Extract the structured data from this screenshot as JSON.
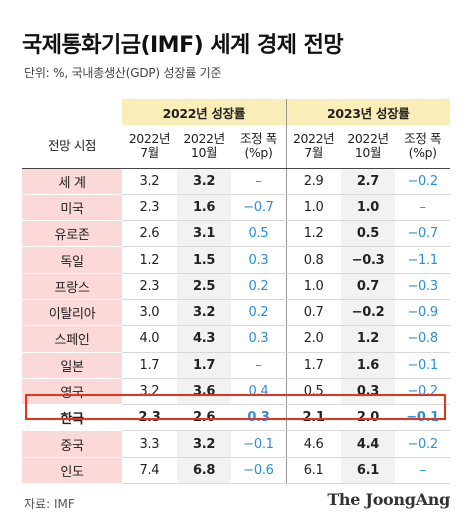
{
  "title": "국제통화기금(IMF) 세계 경제 전망",
  "unit": "단위: %, 국내총생산(GDP) 성장률 기준",
  "group_headers": [
    "2022년 성장률",
    "2023년 성장률"
  ],
  "row_header": "전망 시점",
  "sub_headers": [
    [
      "2022년",
      "7월"
    ],
    [
      "2022년",
      "10월"
    ],
    [
      "조정 폭",
      "(%p)"
    ],
    [
      "2022년",
      "7월"
    ],
    [
      "2022년",
      "10월"
    ],
    [
      "조정 폭",
      "(%p)"
    ]
  ],
  "rows": [
    {
      "country": "세 계",
      "values": [
        "3.2",
        "3.2",
        "–",
        "2.9",
        "2.7",
        "−0.2"
      ]
    },
    {
      "country": "미국",
      "values": [
        "2.3",
        "1.6",
        "−0.7",
        "1.0",
        "1.0",
        "–"
      ]
    },
    {
      "country": "유로존",
      "values": [
        "2.6",
        "3.1",
        "0.5",
        "1.2",
        "0.5",
        "−0.7"
      ]
    },
    {
      "country": "독일",
      "values": [
        "1.2",
        "1.5",
        "0.3",
        "0.8",
        "−0.3",
        "−1.1"
      ]
    },
    {
      "country": "프랑스",
      "values": [
        "2.3",
        "2.5",
        "0.2",
        "1.0",
        "0.7",
        "−0.3"
      ]
    },
    {
      "country": "이탈리아",
      "values": [
        "3.0",
        "3.2",
        "0.2",
        "0.7",
        "−0.2",
        "−0.9"
      ]
    },
    {
      "country": "스페인",
      "values": [
        "4.0",
        "4.3",
        "0.3",
        "2.0",
        "1.2",
        "−0.8"
      ]
    },
    {
      "country": "일본",
      "values": [
        "1.7",
        "1.7",
        "–",
        "1.7",
        "1.6",
        "−0.1"
      ]
    },
    {
      "country": "영국",
      "values": [
        "3.2",
        "3.6",
        "0.4",
        "0.5",
        "0.3",
        "−0.2"
      ]
    },
    {
      "country": "한국",
      "values": [
        "2.3",
        "2.6",
        "0.3",
        "2.1",
        "2.0",
        "−0.1"
      ],
      "highlight": true
    },
    {
      "country": "중국",
      "values": [
        "3.3",
        "3.2",
        "−0.1",
        "4.6",
        "4.4",
        "−0.2"
      ]
    },
    {
      "country": "인도",
      "values": [
        "7.4",
        "6.8",
        "−0.6",
        "6.1",
        "6.1",
        "–"
      ]
    }
  ],
  "colors": {
    "header_fill": "#faeeb8",
    "country_fill": "#fbd9d9",
    "adjustment_text": "#2a8fd6",
    "highlight_border": "#e8331c"
  },
  "source": "자료: IMF",
  "logo": "The JoongAng"
}
